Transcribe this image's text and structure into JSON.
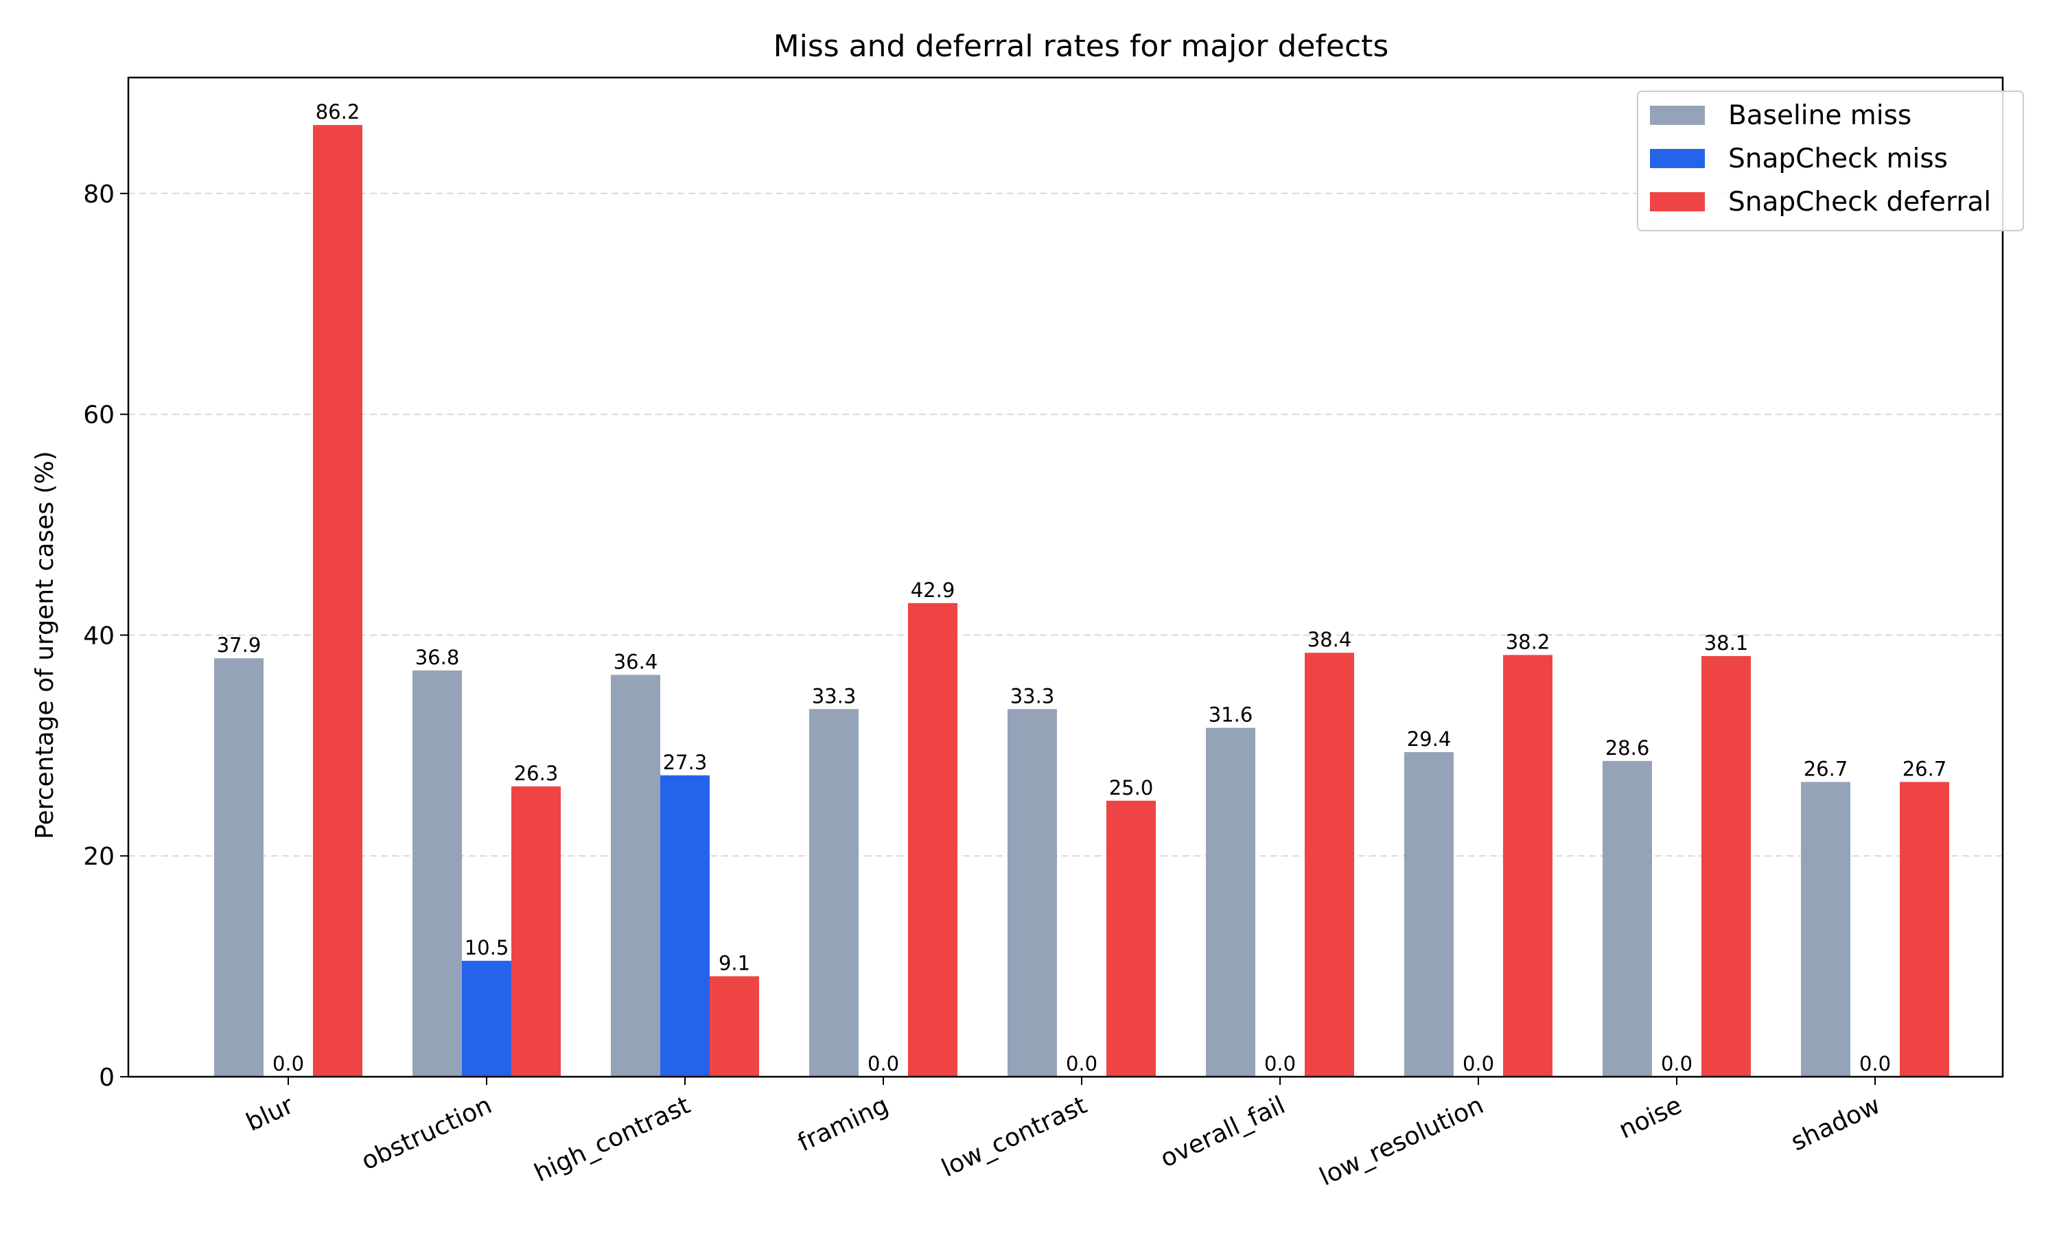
{
  "chart_data": {
    "type": "bar",
    "title": "Miss and deferral rates for major defects",
    "xlabel": "",
    "ylabel": "Percentage of urgent cases (%)",
    "categories": [
      "blur",
      "obstruction",
      "high_contrast",
      "framing",
      "low_contrast",
      "overall_fail",
      "low_resolution",
      "noise",
      "shadow"
    ],
    "series": [
      {
        "name": "Baseline miss",
        "color": "#94a3b8",
        "values": [
          37.9,
          36.8,
          36.4,
          33.3,
          33.3,
          31.6,
          29.4,
          28.6,
          26.7
        ]
      },
      {
        "name": "SnapCheck miss",
        "color": "#2563eb",
        "values": [
          0.0,
          10.5,
          27.3,
          0.0,
          0.0,
          0.0,
          0.0,
          0.0,
          0.0
        ]
      },
      {
        "name": "SnapCheck deferral",
        "color": "#ef4444",
        "values": [
          86.2,
          26.3,
          9.1,
          42.9,
          25.0,
          38.4,
          38.2,
          38.1,
          26.7
        ]
      }
    ],
    "ylim": [
      0,
      90.5
    ],
    "yticks": [
      0,
      20,
      40,
      60,
      80
    ],
    "grid": "y-dashed",
    "legend_position": "top-right",
    "value_labels": true
  }
}
